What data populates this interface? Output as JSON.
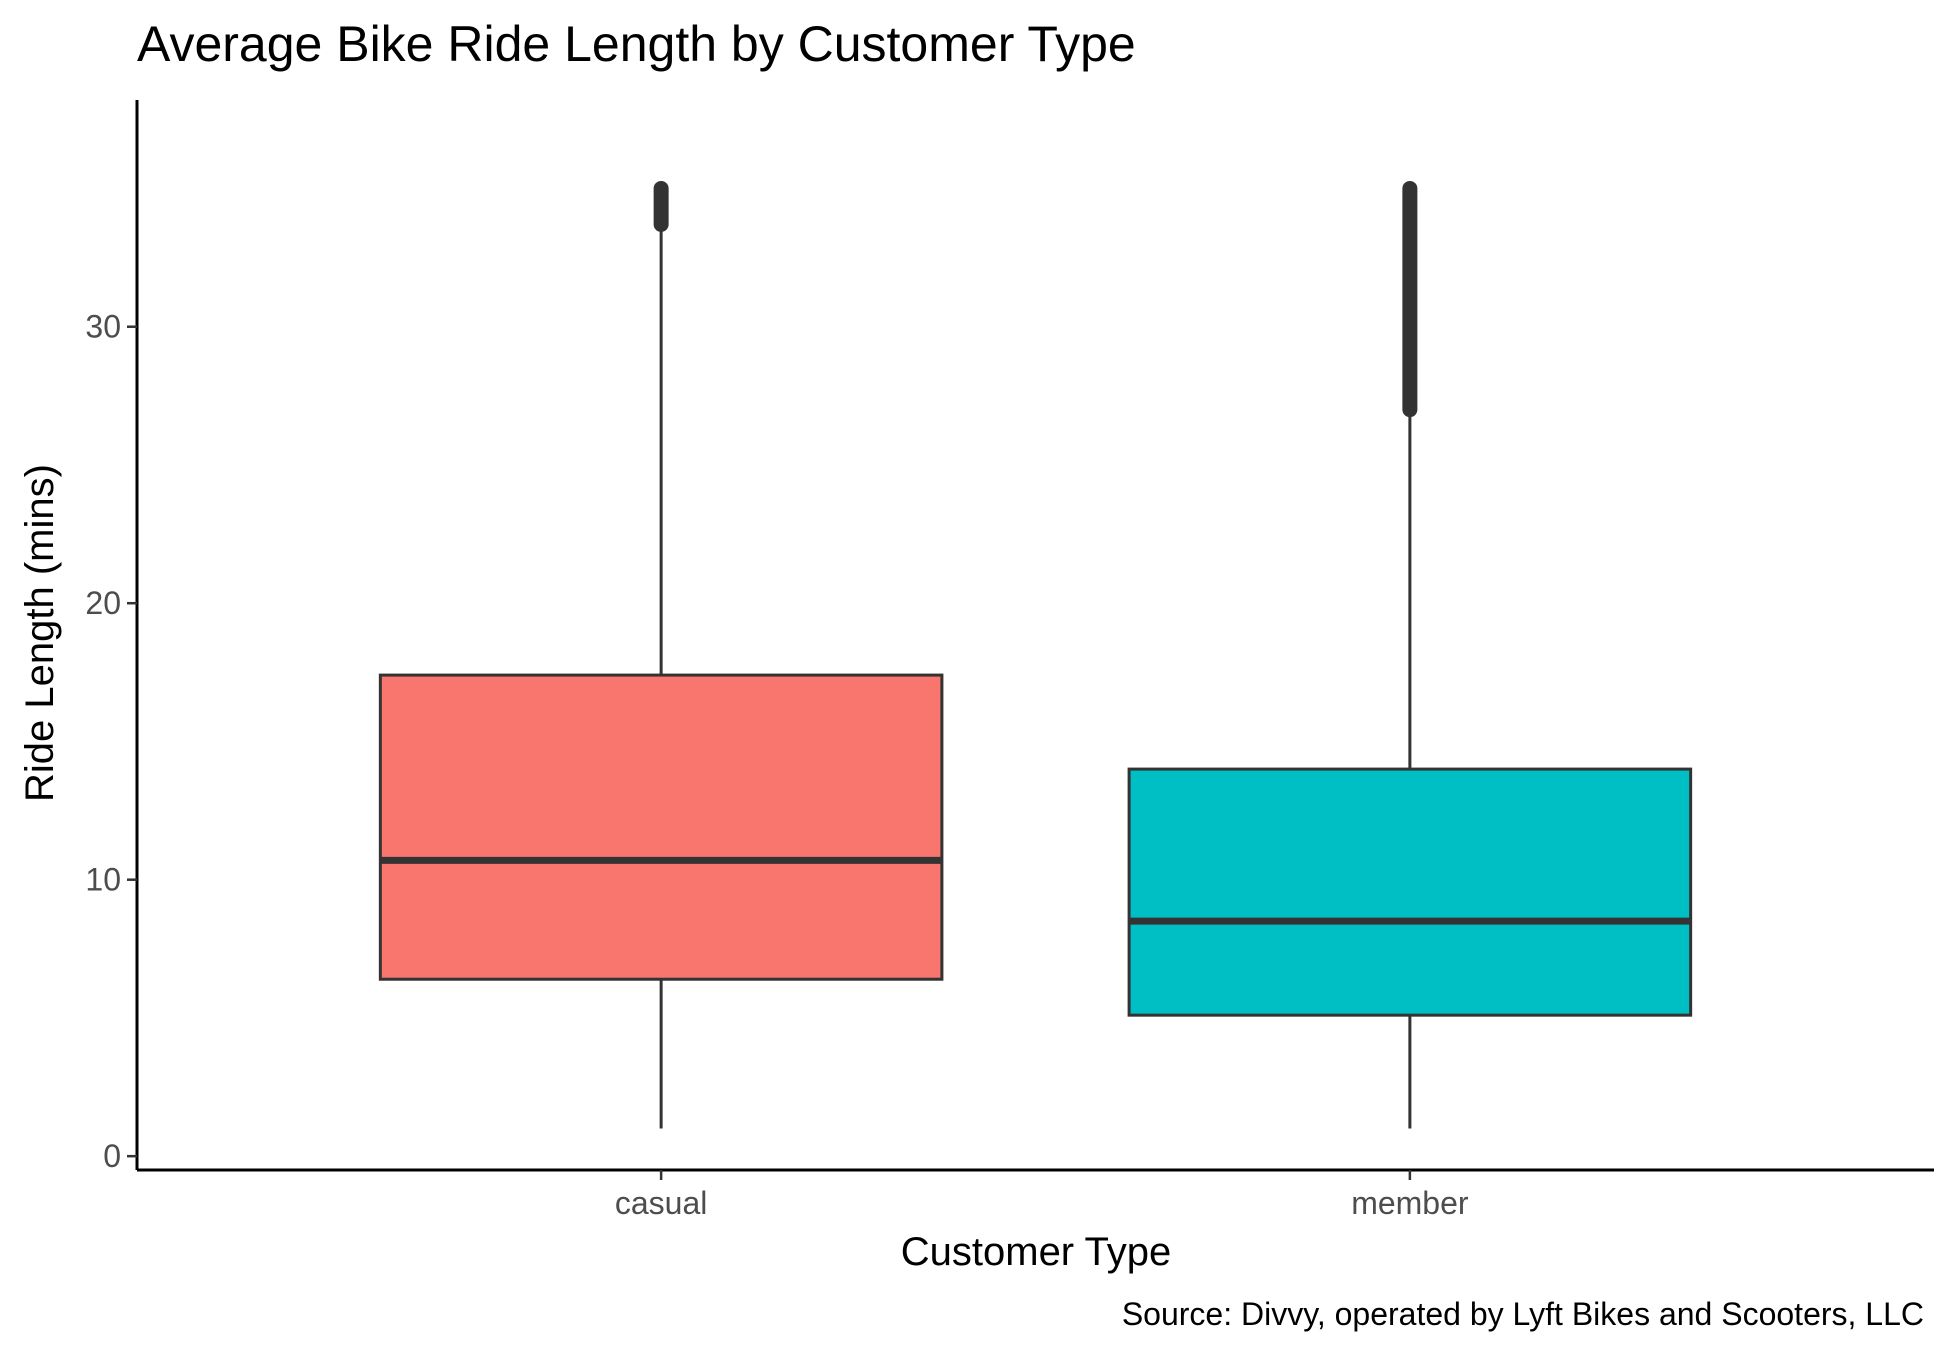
{
  "chart_data": {
    "type": "boxplot",
    "title": "Average Bike Ride Length by Customer Type",
    "xlabel": "Customer Type",
    "ylabel": "Ride Length (mins)",
    "caption": "Source: Divvy, operated by Lyft Bikes and Scooters, LLC",
    "ylim": [
      -0.5,
      38.2
    ],
    "yticks": [
      0,
      10,
      20,
      30
    ],
    "categories": [
      "casual",
      "member"
    ],
    "grid": false,
    "legend": "none",
    "boxes": [
      {
        "category": "casual",
        "color": "#F8766D",
        "whisker_low": 1.0,
        "q1": 6.4,
        "median": 10.7,
        "q3": 17.4,
        "whisker_high": 33.7,
        "outliers_range": [
          33.7,
          35.0
        ]
      },
      {
        "category": "member",
        "color": "#00BFC4",
        "whisker_low": 1.0,
        "q1": 5.1,
        "median": 8.5,
        "q3": 14.0,
        "whisker_high": 27.0,
        "outliers_range": [
          27.0,
          35.0
        ]
      }
    ]
  }
}
